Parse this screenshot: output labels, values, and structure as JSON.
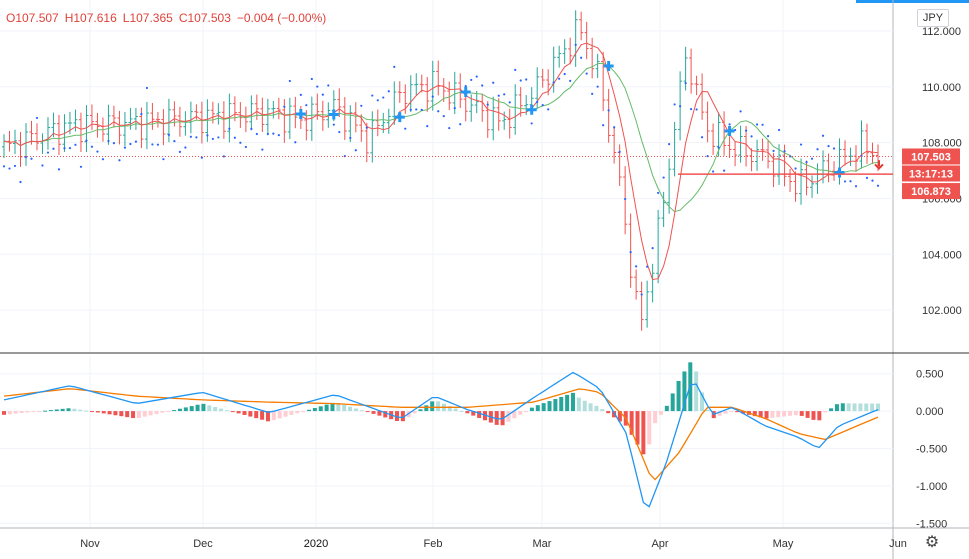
{
  "header": {
    "open": "O107.507",
    "high": "H107.616",
    "low": "L107.365",
    "close": "C107.503",
    "change": "−0.004 (−0.00%)"
  },
  "currency_button": "JPY",
  "price_tags": {
    "last": "107.503",
    "countdown": "13:17:13",
    "level": "106.873"
  },
  "colors": {
    "up": "#26a69a",
    "down": "#ef5350",
    "ma_fast": "#ef5350",
    "ma_slow": "#66bb6a",
    "psar": "#2962ff",
    "signal_cross": "#2196f3",
    "macd": "#2196f3",
    "signal": "#f57c00",
    "hist_up_strong": "#26a69a",
    "hist_up_weak": "#b2dfdb",
    "hist_down_strong": "#ef5350",
    "hist_down_weak": "#ffcdd2"
  },
  "chart_data": [
    {
      "type": "candlestick",
      "title": "",
      "x_ticks": [
        "Nov",
        "Dec",
        "2020",
        "Feb",
        "Mar",
        "Apr",
        "May",
        "Jun"
      ],
      "y_ticks": [
        "112.000",
        "110.000",
        "108.000",
        "106.000",
        "104.000",
        "102.000"
      ],
      "ylim": [
        100.5,
        113.0
      ],
      "close_path": [
        {
          "t": 0,
          "v": 107.8
        },
        {
          "t": 1,
          "v": 108.6
        },
        {
          "t": 2,
          "v": 108.7
        },
        {
          "t": 3,
          "v": 108.9
        },
        {
          "t": 4,
          "v": 109.1
        },
        {
          "t": 4.5,
          "v": 108.8
        },
        {
          "t": 5,
          "v": 109.3
        },
        {
          "t": 5.5,
          "v": 108.1
        },
        {
          "t": 6,
          "v": 109.8
        },
        {
          "t": 6.5,
          "v": 110.1
        },
        {
          "t": 7,
          "v": 109.4
        },
        {
          "t": 7.5,
          "v": 108.7
        },
        {
          "t": 8,
          "v": 109.8
        },
        {
          "t": 8.7,
          "v": 112.1
        },
        {
          "t": 9,
          "v": 110.2
        },
        {
          "t": 9.3,
          "v": 106.5
        },
        {
          "t": 9.6,
          "v": 101.3
        },
        {
          "t": 9.9,
          "v": 105.0
        },
        {
          "t": 10.3,
          "v": 111.2
        },
        {
          "t": 10.6,
          "v": 108.5
        },
        {
          "t": 11,
          "v": 107.8
        },
        {
          "t": 11.5,
          "v": 107.5
        },
        {
          "t": 12,
          "v": 106.4
        },
        {
          "t": 12.5,
          "v": 107.2
        },
        {
          "t": 13,
          "v": 107.9
        },
        {
          "t": 13.2,
          "v": 107.5
        }
      ],
      "series": [
        {
          "name": "",
          "role": "fast-ma"
        },
        {
          "name": "",
          "role": "slow-ma"
        },
        {
          "name": "",
          "role": "parabolic-sar"
        }
      ]
    },
    {
      "type": "macd",
      "y_ticks": [
        "0.500",
        "0.000",
        "-0.500",
        "-1.000",
        "-1.500"
      ],
      "ylim": [
        -1.55,
        0.75
      ],
      "macd_path": [
        {
          "t": 0,
          "v": 0.15
        },
        {
          "t": 1,
          "v": 0.34
        },
        {
          "t": 2,
          "v": 0.1
        },
        {
          "t": 3,
          "v": 0.25
        },
        {
          "t": 4,
          "v": -0.02
        },
        {
          "t": 5,
          "v": 0.22
        },
        {
          "t": 6,
          "v": -0.1
        },
        {
          "t": 6.5,
          "v": 0.2
        },
        {
          "t": 7,
          "v": 0.02
        },
        {
          "t": 7.5,
          "v": -0.12
        },
        {
          "t": 8,
          "v": 0.18
        },
        {
          "t": 8.6,
          "v": 0.52
        },
        {
          "t": 9,
          "v": 0.3
        },
        {
          "t": 9.4,
          "v": -0.3
        },
        {
          "t": 9.7,
          "v": -1.38
        },
        {
          "t": 10,
          "v": -0.7
        },
        {
          "t": 10.4,
          "v": 0.45
        },
        {
          "t": 10.7,
          "v": -0.05
        },
        {
          "t": 11,
          "v": 0.05
        },
        {
          "t": 11.5,
          "v": -0.2
        },
        {
          "t": 12,
          "v": -0.35
        },
        {
          "t": 12.3,
          "v": -0.5
        },
        {
          "t": 12.6,
          "v": -0.2
        },
        {
          "t": 13.2,
          "v": 0.02
        }
      ],
      "signal_path": [
        {
          "t": 0,
          "v": 0.2
        },
        {
          "t": 1,
          "v": 0.3
        },
        {
          "t": 2,
          "v": 0.2
        },
        {
          "t": 3,
          "v": 0.15
        },
        {
          "t": 4,
          "v": 0.12
        },
        {
          "t": 5,
          "v": 0.1
        },
        {
          "t": 6,
          "v": 0.05
        },
        {
          "t": 7,
          "v": 0.05
        },
        {
          "t": 8,
          "v": 0.12
        },
        {
          "t": 8.7,
          "v": 0.3
        },
        {
          "t": 9,
          "v": 0.25
        },
        {
          "t": 9.4,
          "v": -0.1
        },
        {
          "t": 9.8,
          "v": -0.95
        },
        {
          "t": 10.2,
          "v": -0.55
        },
        {
          "t": 10.6,
          "v": 0.05
        },
        {
          "t": 11,
          "v": 0.05
        },
        {
          "t": 11.5,
          "v": -0.1
        },
        {
          "t": 12,
          "v": -0.3
        },
        {
          "t": 12.4,
          "v": -0.38
        },
        {
          "t": 13.2,
          "v": -0.08
        }
      ]
    }
  ]
}
